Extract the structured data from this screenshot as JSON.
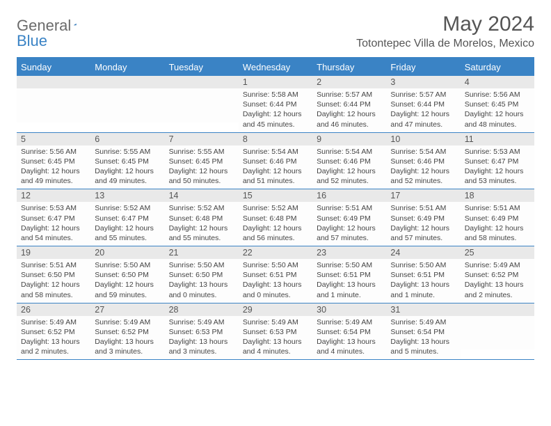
{
  "brand": {
    "part1": "General",
    "part2": "Blue"
  },
  "title": "May 2024",
  "location": "Totontepec Villa de Morelos, Mexico",
  "colors": {
    "accent": "#3a83c5",
    "dayNumBg": "#e9e9e9",
    "text": "#444444",
    "titleText": "#555555",
    "bodyBg": "#ffffff"
  },
  "dayNames": [
    "Sunday",
    "Monday",
    "Tuesday",
    "Wednesday",
    "Thursday",
    "Friday",
    "Saturday"
  ],
  "calendar": {
    "type": "table",
    "columns": 7,
    "rows": 5,
    "cellFontSize": 10.5,
    "dayNumFontSize": 12.5,
    "headerFontSize": 13
  },
  "weeks": [
    [
      {
        "n": "",
        "sr": "",
        "ss": "",
        "dl": ""
      },
      {
        "n": "",
        "sr": "",
        "ss": "",
        "dl": ""
      },
      {
        "n": "",
        "sr": "",
        "ss": "",
        "dl": ""
      },
      {
        "n": "1",
        "sr": "5:58 AM",
        "ss": "6:44 PM",
        "dl": "12 hours and 45 minutes."
      },
      {
        "n": "2",
        "sr": "5:57 AM",
        "ss": "6:44 PM",
        "dl": "12 hours and 46 minutes."
      },
      {
        "n": "3",
        "sr": "5:57 AM",
        "ss": "6:44 PM",
        "dl": "12 hours and 47 minutes."
      },
      {
        "n": "4",
        "sr": "5:56 AM",
        "ss": "6:45 PM",
        "dl": "12 hours and 48 minutes."
      }
    ],
    [
      {
        "n": "5",
        "sr": "5:56 AM",
        "ss": "6:45 PM",
        "dl": "12 hours and 49 minutes."
      },
      {
        "n": "6",
        "sr": "5:55 AM",
        "ss": "6:45 PM",
        "dl": "12 hours and 49 minutes."
      },
      {
        "n": "7",
        "sr": "5:55 AM",
        "ss": "6:45 PM",
        "dl": "12 hours and 50 minutes."
      },
      {
        "n": "8",
        "sr": "5:54 AM",
        "ss": "6:46 PM",
        "dl": "12 hours and 51 minutes."
      },
      {
        "n": "9",
        "sr": "5:54 AM",
        "ss": "6:46 PM",
        "dl": "12 hours and 52 minutes."
      },
      {
        "n": "10",
        "sr": "5:54 AM",
        "ss": "6:46 PM",
        "dl": "12 hours and 52 minutes."
      },
      {
        "n": "11",
        "sr": "5:53 AM",
        "ss": "6:47 PM",
        "dl": "12 hours and 53 minutes."
      }
    ],
    [
      {
        "n": "12",
        "sr": "5:53 AM",
        "ss": "6:47 PM",
        "dl": "12 hours and 54 minutes."
      },
      {
        "n": "13",
        "sr": "5:52 AM",
        "ss": "6:47 PM",
        "dl": "12 hours and 55 minutes."
      },
      {
        "n": "14",
        "sr": "5:52 AM",
        "ss": "6:48 PM",
        "dl": "12 hours and 55 minutes."
      },
      {
        "n": "15",
        "sr": "5:52 AM",
        "ss": "6:48 PM",
        "dl": "12 hours and 56 minutes."
      },
      {
        "n": "16",
        "sr": "5:51 AM",
        "ss": "6:49 PM",
        "dl": "12 hours and 57 minutes."
      },
      {
        "n": "17",
        "sr": "5:51 AM",
        "ss": "6:49 PM",
        "dl": "12 hours and 57 minutes."
      },
      {
        "n": "18",
        "sr": "5:51 AM",
        "ss": "6:49 PM",
        "dl": "12 hours and 58 minutes."
      }
    ],
    [
      {
        "n": "19",
        "sr": "5:51 AM",
        "ss": "6:50 PM",
        "dl": "12 hours and 58 minutes."
      },
      {
        "n": "20",
        "sr": "5:50 AM",
        "ss": "6:50 PM",
        "dl": "12 hours and 59 minutes."
      },
      {
        "n": "21",
        "sr": "5:50 AM",
        "ss": "6:50 PM",
        "dl": "13 hours and 0 minutes."
      },
      {
        "n": "22",
        "sr": "5:50 AM",
        "ss": "6:51 PM",
        "dl": "13 hours and 0 minutes."
      },
      {
        "n": "23",
        "sr": "5:50 AM",
        "ss": "6:51 PM",
        "dl": "13 hours and 1 minute."
      },
      {
        "n": "24",
        "sr": "5:50 AM",
        "ss": "6:51 PM",
        "dl": "13 hours and 1 minute."
      },
      {
        "n": "25",
        "sr": "5:49 AM",
        "ss": "6:52 PM",
        "dl": "13 hours and 2 minutes."
      }
    ],
    [
      {
        "n": "26",
        "sr": "5:49 AM",
        "ss": "6:52 PM",
        "dl": "13 hours and 2 minutes."
      },
      {
        "n": "27",
        "sr": "5:49 AM",
        "ss": "6:52 PM",
        "dl": "13 hours and 3 minutes."
      },
      {
        "n": "28",
        "sr": "5:49 AM",
        "ss": "6:53 PM",
        "dl": "13 hours and 3 minutes."
      },
      {
        "n": "29",
        "sr": "5:49 AM",
        "ss": "6:53 PM",
        "dl": "13 hours and 4 minutes."
      },
      {
        "n": "30",
        "sr": "5:49 AM",
        "ss": "6:54 PM",
        "dl": "13 hours and 4 minutes."
      },
      {
        "n": "31",
        "sr": "5:49 AM",
        "ss": "6:54 PM",
        "dl": "13 hours and 5 minutes."
      },
      {
        "n": "",
        "sr": "",
        "ss": "",
        "dl": ""
      }
    ]
  ],
  "labels": {
    "sunrise": "Sunrise:",
    "sunset": "Sunset:",
    "daylight": "Daylight:"
  }
}
